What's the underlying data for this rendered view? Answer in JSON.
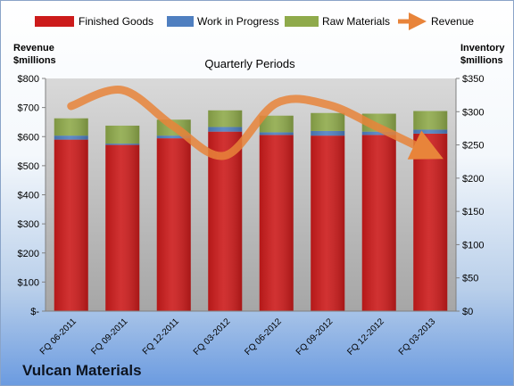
{
  "company": "Vulcan Materials",
  "colors": {
    "finished_goods": "#cc1b1b",
    "work_in_progress": "#4f7fc0",
    "raw_materials": "#8faa4b",
    "revenue": "#e8843a"
  },
  "chart_data": {
    "type": "bar",
    "stacked": true,
    "title": "Quarterly Periods",
    "categories": [
      "FQ 06-2011",
      "FQ 09-2011",
      "FQ 12-2011",
      "FQ 03-2012",
      "FQ 06-2012",
      "FQ 09-2012",
      "FQ 12-2012",
      "FQ 03-2013"
    ],
    "left_axis": {
      "label_line1": "Revenue",
      "label_line2": "$millions",
      "ylim": [
        0,
        800
      ],
      "ticks": [
        "$-",
        "$100",
        "$200",
        "$300",
        "$400",
        "$500",
        "$600",
        "$700",
        "$800"
      ]
    },
    "right_axis": {
      "label_line1": "Inventory",
      "label_line2": "$millions",
      "ylim": [
        0,
        350
      ],
      "ticks": [
        "$0",
        "$50",
        "$100",
        "$150",
        "$200",
        "$250",
        "$300",
        "$350"
      ]
    },
    "series": [
      {
        "name": "Finished Goods",
        "axis": "right",
        "type": "bar",
        "values": [
          258,
          250,
          260,
          270,
          265,
          264,
          265,
          267
        ]
      },
      {
        "name": "Work in Progress",
        "axis": "right",
        "type": "bar",
        "values": [
          6,
          2,
          4,
          7,
          4,
          7,
          5,
          6
        ]
      },
      {
        "name": "Raw Materials",
        "axis": "right",
        "type": "bar",
        "values": [
          26,
          27,
          24,
          25,
          25,
          27,
          27,
          28
        ]
      },
      {
        "name": "Revenue",
        "axis": "left",
        "type": "line",
        "values": [
          705,
          760,
          635,
          535,
          715,
          710,
          630,
          545
        ]
      }
    ],
    "legend": "top",
    "grid": false
  }
}
